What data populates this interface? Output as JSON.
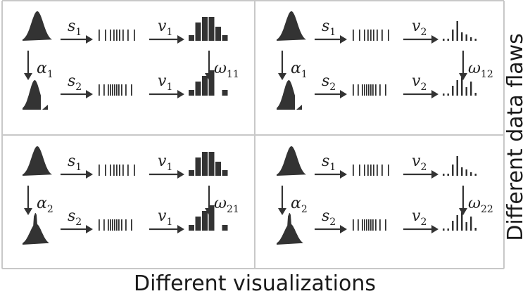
{
  "figure": {
    "x_axis_caption": "Different visualizations",
    "y_axis_caption": "Different data flaws",
    "ink_color": "#333333",
    "divider_color": "#c8c8c8",
    "panels": [
      {
        "id": "11",
        "top": {
          "sampling": "s",
          "sampling_sub": "1",
          "visualization": "v",
          "visualization_sub": "1"
        },
        "flaw": {
          "symbol": "α",
          "sub": "1",
          "shape": "truncated"
        },
        "effect": {
          "symbol": "ω",
          "sub": "11"
        },
        "bottom": {
          "sampling": "s",
          "sampling_sub": "2",
          "visualization": "v",
          "visualization_sub": "1"
        },
        "vis_kind": "histogram"
      },
      {
        "id": "12",
        "top": {
          "sampling": "s",
          "sampling_sub": "1",
          "visualization": "v",
          "visualization_sub": "2"
        },
        "flaw": {
          "symbol": "α",
          "sub": "1",
          "shape": "truncated"
        },
        "effect": {
          "symbol": "ω",
          "sub": "12"
        },
        "bottom": {
          "sampling": "s",
          "sampling_sub": "2",
          "visualization": "v",
          "visualization_sub": "2"
        },
        "vis_kind": "stems"
      },
      {
        "id": "21",
        "top": {
          "sampling": "s",
          "sampling_sub": "1",
          "visualization": "v",
          "visualization_sub": "1"
        },
        "flaw": {
          "symbol": "α",
          "sub": "2",
          "shape": "spike"
        },
        "effect": {
          "symbol": "ω",
          "sub": "21"
        },
        "bottom": {
          "sampling": "s",
          "sampling_sub": "2",
          "visualization": "v",
          "visualization_sub": "1"
        },
        "vis_kind": "histogram"
      },
      {
        "id": "22",
        "top": {
          "sampling": "s",
          "sampling_sub": "1",
          "visualization": "v",
          "visualization_sub": "2"
        },
        "flaw": {
          "symbol": "α",
          "sub": "2",
          "shape": "spike"
        },
        "effect": {
          "symbol": "ω",
          "sub": "22"
        },
        "bottom": {
          "sampling": "s",
          "sampling_sub": "2",
          "visualization": "v",
          "visualization_sub": "2"
        },
        "vis_kind": "stems"
      }
    ]
  }
}
